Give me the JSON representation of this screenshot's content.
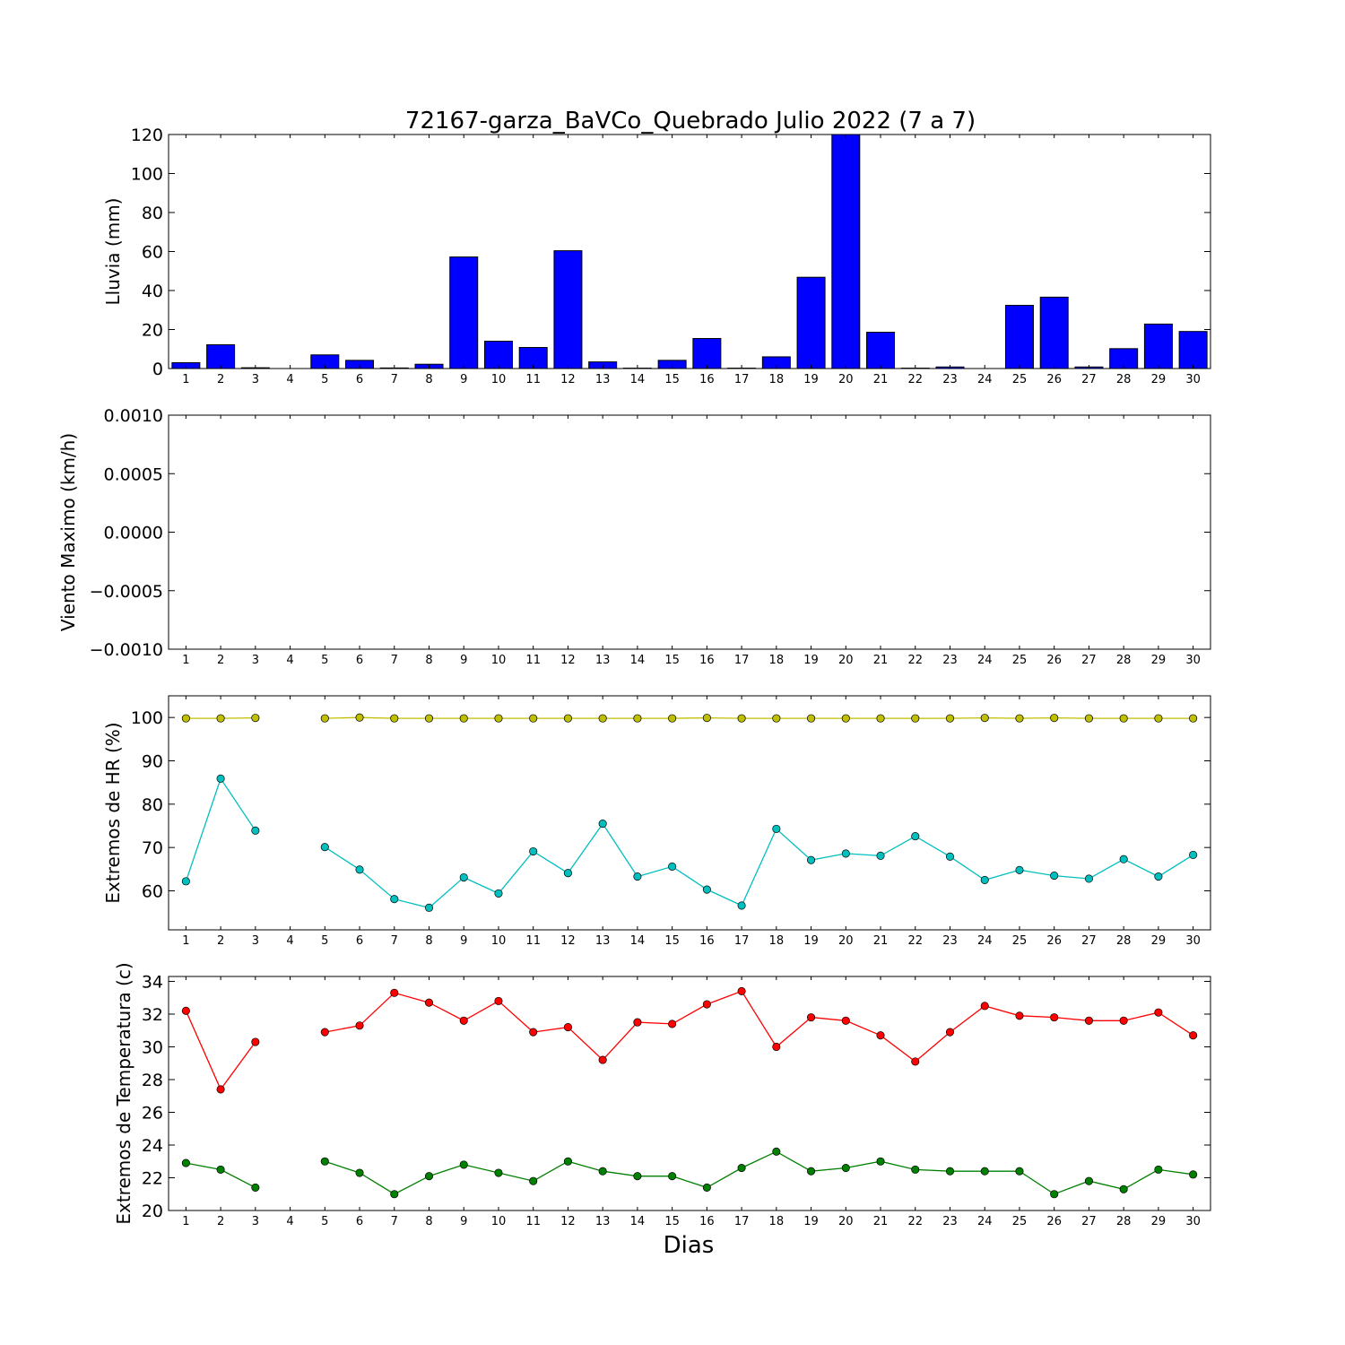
{
  "figure": {
    "title": "72167-garza_BaVCo_Quebrado Julio 2022  (7 a 7)",
    "xlabel": "Dias"
  },
  "chart_data": [
    {
      "type": "bar",
      "ylabel": "Lluvia (mm)",
      "ylim": [
        0,
        120
      ],
      "yticks": [
        "0",
        "20",
        "40",
        "60",
        "80",
        "100",
        "120"
      ],
      "xlim": [
        0.5,
        30.5
      ],
      "categories": [
        "1",
        "2",
        "3",
        "4",
        "5",
        "6",
        "7",
        "8",
        "9",
        "10",
        "11",
        "12",
        "13",
        "14",
        "15",
        "16",
        "17",
        "18",
        "19",
        "20",
        "21",
        "22",
        "23",
        "24",
        "25",
        "26",
        "27",
        "28",
        "29",
        "30"
      ],
      "values": [
        3,
        12.2,
        0.4,
        0,
        7,
        4.2,
        0.3,
        2.2,
        57.2,
        14,
        10.8,
        60.4,
        3.4,
        0.2,
        4.2,
        15.4,
        0.2,
        6,
        46.8,
        120,
        18.6,
        0.2,
        0.8,
        0,
        32.4,
        36.6,
        0.8,
        10.2,
        22.8,
        19
      ],
      "colors": {
        "bar": "#0000ff",
        "edge": "#000000"
      },
      "grid": false
    },
    {
      "type": "line",
      "ylabel": "Viento Maximo (km/h)",
      "ylim": [
        -0.001,
        0.001
      ],
      "yticks": [
        "−0.0010",
        "−0.0005",
        "0.0000",
        "0.0005",
        "0.0010"
      ],
      "xlim": [
        0.5,
        30.5
      ],
      "categories": [
        "1",
        "2",
        "3",
        "4",
        "5",
        "6",
        "7",
        "8",
        "9",
        "10",
        "11",
        "12",
        "13",
        "14",
        "15",
        "16",
        "17",
        "18",
        "19",
        "20",
        "21",
        "22",
        "23",
        "24",
        "25",
        "26",
        "27",
        "28",
        "29",
        "30"
      ],
      "series": [],
      "grid": false
    },
    {
      "type": "line",
      "ylabel": "Extremos de HR (%)",
      "ylim": [
        51,
        105
      ],
      "yticks": [
        "60",
        "70",
        "80",
        "90",
        "100"
      ],
      "ytick_values": [
        60,
        70,
        80,
        90,
        100
      ],
      "xlim": [
        0.5,
        30.5
      ],
      "categories": [
        "1",
        "2",
        "3",
        "4",
        "5",
        "6",
        "7",
        "8",
        "9",
        "10",
        "11",
        "12",
        "13",
        "14",
        "15",
        "16",
        "17",
        "18",
        "19",
        "20",
        "21",
        "22",
        "23",
        "24",
        "25",
        "26",
        "27",
        "28",
        "29",
        "30"
      ],
      "series": [
        {
          "color": "#bfbf00",
          "values": [
            99.8,
            99.8,
            99.9,
            null,
            99.8,
            100,
            99.8,
            99.8,
            99.8,
            99.8,
            99.8,
            99.8,
            99.8,
            99.8,
            99.8,
            99.9,
            99.8,
            99.8,
            99.8,
            99.8,
            99.8,
            99.8,
            99.8,
            99.9,
            99.8,
            99.9,
            99.8,
            99.8,
            99.8,
            99.8
          ]
        },
        {
          "color": "#00bfbf",
          "values": [
            62.2,
            85.9,
            73.9,
            null,
            70.1,
            64.9,
            58.1,
            56.1,
            63.1,
            59.4,
            69.1,
            64.1,
            75.5,
            63.3,
            65.6,
            60.3,
            56.6,
            74.3,
            67.1,
            68.6,
            68.1,
            72.6,
            67.9,
            62.5,
            64.8,
            63.5,
            62.8,
            67.3,
            63.3,
            68.3
          ]
        }
      ],
      "grid": false
    },
    {
      "type": "line",
      "ylabel": "Extremos de Temperatura (c)",
      "ylim": [
        20,
        34.3
      ],
      "yticks": [
        "20",
        "22",
        "24",
        "26",
        "28",
        "30",
        "32",
        "34"
      ],
      "ytick_values": [
        20,
        22,
        24,
        26,
        28,
        30,
        32,
        34
      ],
      "xlim": [
        0.5,
        30.5
      ],
      "categories": [
        "1",
        "2",
        "3",
        "4",
        "5",
        "6",
        "7",
        "8",
        "9",
        "10",
        "11",
        "12",
        "13",
        "14",
        "15",
        "16",
        "17",
        "18",
        "19",
        "20",
        "21",
        "22",
        "23",
        "24",
        "25",
        "26",
        "27",
        "28",
        "29",
        "30"
      ],
      "series": [
        {
          "color": "#ff0000",
          "values": [
            32.2,
            27.4,
            30.3,
            null,
            30.9,
            31.3,
            33.3,
            32.7,
            31.6,
            32.8,
            30.9,
            31.2,
            29.2,
            31.5,
            31.4,
            32.6,
            33.4,
            30,
            31.8,
            31.6,
            30.7,
            29.1,
            30.9,
            32.5,
            31.9,
            31.8,
            31.6,
            31.6,
            32.1,
            30.7
          ]
        },
        {
          "color": "#008000",
          "values": [
            22.9,
            22.5,
            21.4,
            null,
            23,
            22.3,
            21,
            22.1,
            22.8,
            22.3,
            21.8,
            23,
            22.4,
            22.1,
            22.1,
            21.4,
            22.6,
            23.6,
            22.4,
            22.6,
            23,
            22.5,
            22.4,
            22.4,
            22.4,
            21,
            21.8,
            21.3,
            22.5,
            22.2
          ]
        }
      ],
      "grid": false
    }
  ]
}
